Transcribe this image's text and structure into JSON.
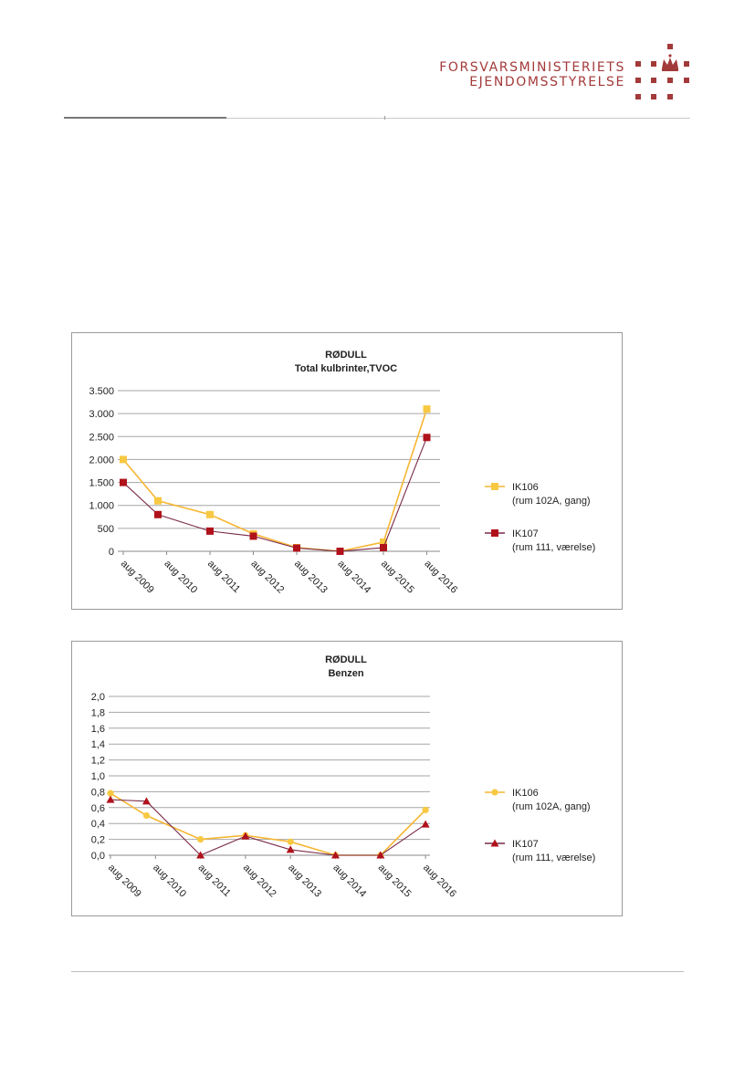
{
  "header": {
    "org_line1": "FORSVARSMINISTERIETS",
    "org_line2": "EJENDOMSSTYRELSE",
    "logo_icon": "crown-dots-logo-icon",
    "brand_color": "#a33a3a"
  },
  "chart_data": [
    {
      "type": "line",
      "title": "RØDULL",
      "subtitle": "Total kulbrinter,TVOC",
      "categories": [
        "aug 2009",
        "aug 2010",
        "aug 2011",
        "aug 2012",
        "aug 2013",
        "aug 2014",
        "aug 2015",
        "aug 2016"
      ],
      "ylim": [
        0,
        3500
      ],
      "yticks": [
        0,
        500,
        1000,
        1500,
        2000,
        2500,
        3000,
        3500
      ],
      "ytick_labels": [
        "0",
        "500",
        "1.000",
        "1.500",
        "2.000",
        "2.500",
        "3.000",
        "3.500"
      ],
      "grid": true,
      "legend": "right",
      "series": [
        {
          "name": "IK106",
          "name2": "(rum 102A, gang)",
          "marker": "square",
          "color": "#f6b632",
          "marker_color": "#f7c842",
          "x": [
            0,
            0.8,
            2,
            3,
            4,
            5,
            6,
            7
          ],
          "values": [
            2000,
            1100,
            800,
            380,
            80,
            0,
            200,
            3100
          ]
        },
        {
          "name": "IK107",
          "name2": "(rum 111, værelse)",
          "marker": "square",
          "color": "#7a2a4a",
          "marker_color": "#b0121b",
          "x": [
            0,
            0.8,
            2,
            3,
            4,
            5,
            6,
            7
          ],
          "values": [
            1500,
            800,
            440,
            330,
            70,
            0,
            80,
            2480
          ]
        }
      ]
    },
    {
      "type": "line",
      "title": "RØDULL",
      "subtitle": "Benzen",
      "categories": [
        "aug 2009",
        "aug 2010",
        "aug 2011",
        "aug 2012",
        "aug 2013",
        "aug 2014",
        "aug 2015",
        "aug 2016"
      ],
      "ylim": [
        0,
        2.0
      ],
      "yticks": [
        0,
        0.2,
        0.4,
        0.6,
        0.8,
        1.0,
        1.2,
        1.4,
        1.6,
        1.8,
        2.0
      ],
      "ytick_labels": [
        "0,0",
        "0,2",
        "0,4",
        "0,6",
        "0,8",
        "1,0",
        "1,2",
        "1,4",
        "1,6",
        "1,8",
        "2,0"
      ],
      "grid": true,
      "legend": "right",
      "series": [
        {
          "name": "IK106",
          "name2": "(rum 102A, gang)",
          "marker": "circle",
          "color": "#f6b632",
          "marker_color": "#f7c842",
          "x": [
            0,
            0.8,
            2,
            3,
            4,
            5,
            6,
            7
          ],
          "values": [
            0.78,
            0.5,
            0.2,
            0.25,
            0.17,
            0,
            0,
            0.57
          ]
        },
        {
          "name": "IK107",
          "name2": "(rum 111, værelse)",
          "marker": "triangle",
          "color": "#7a2a4a",
          "marker_color": "#b0121b",
          "x": [
            0,
            0.8,
            2,
            3,
            4,
            5,
            6,
            7
          ],
          "values": [
            0.7,
            0.68,
            0,
            0.24,
            0.07,
            0,
            0,
            0.39
          ]
        }
      ]
    }
  ]
}
